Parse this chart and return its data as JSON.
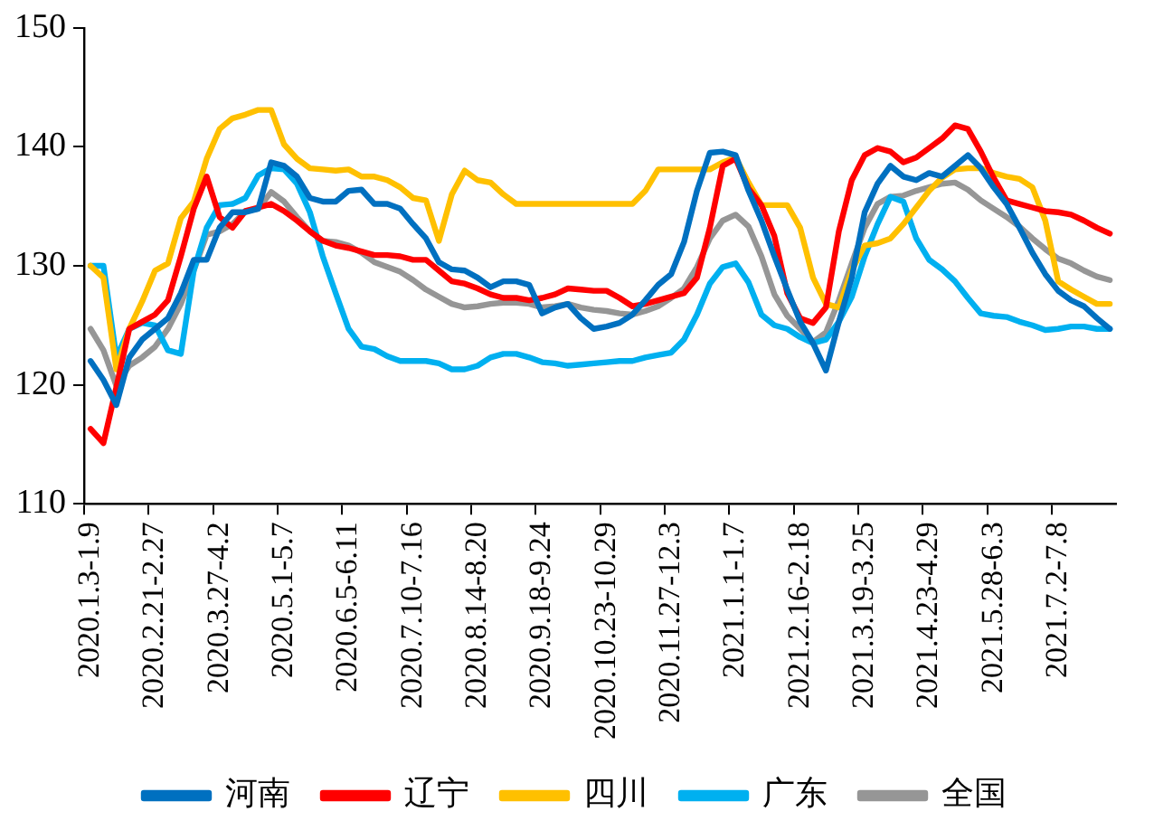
{
  "chart_data": {
    "type": "line",
    "categories": [
      "2020.1.3-1.9",
      null,
      null,
      null,
      null,
      "2020.2.21-2.27",
      null,
      null,
      null,
      null,
      "2020.3.27-4.2",
      null,
      null,
      null,
      null,
      "2020.5.1-5.7",
      null,
      null,
      null,
      null,
      "2020.6.5-6.11",
      null,
      null,
      null,
      null,
      "2020.7.10-7.16",
      null,
      null,
      null,
      null,
      "2020.8.14-8.20",
      null,
      null,
      null,
      null,
      "2020.9.18-9.24",
      null,
      null,
      null,
      null,
      "2020.10.23-10.29",
      null,
      null,
      null,
      null,
      "2020.11.27-12.3",
      null,
      null,
      null,
      null,
      "2021.1.1-1.7",
      null,
      null,
      null,
      null,
      "2021.2.16-2.18",
      null,
      null,
      null,
      null,
      "2021.3.19-3.25",
      null,
      null,
      null,
      null,
      "2021.4.23-4.29",
      null,
      null,
      null,
      null,
      "2021.5.28-6.3",
      null,
      null,
      null,
      null,
      "2021.7.2-7.8",
      null,
      null,
      null,
      null
    ],
    "series": [
      {
        "name": "河南",
        "color": "#0070c0",
        "values": [
          122,
          120.4,
          118.3,
          122.3,
          123.8,
          124.7,
          125.6,
          127.7,
          130.5,
          130.5,
          133.2,
          134.5,
          134.5,
          134.8,
          138.7,
          138.4,
          137.5,
          135.7,
          135.4,
          135.4,
          136.3,
          136.4,
          135.2,
          135.2,
          134.8,
          133.5,
          132.3,
          130.3,
          129.7,
          129.6,
          129,
          128.2,
          128.7,
          128.7,
          128.4,
          126,
          126.5,
          126.8,
          125.6,
          124.7,
          124.9,
          125.2,
          125.9,
          127.1,
          128.4,
          129.3,
          132,
          136.3,
          139.5,
          139.6,
          139.3,
          136.3,
          133.8,
          130.8,
          128,
          125.3,
          123.5,
          121.2,
          125.3,
          129,
          134.5,
          136.9,
          138.4,
          137.5,
          137.2,
          137.8,
          137.5,
          138.4,
          139.3,
          138.2,
          136.6,
          135.2,
          133.2,
          131.1,
          129.3,
          127.9,
          127.1,
          126.6,
          125.6,
          124.7
        ]
      },
      {
        "name": "辽宁",
        "color": "#ff0000",
        "values": [
          116.3,
          115.1,
          119.8,
          124.7,
          125.3,
          125.9,
          127.1,
          130.8,
          134.8,
          137.5,
          134.1,
          133.2,
          134.6,
          134.9,
          135.2,
          134.6,
          133.8,
          132.9,
          132.1,
          131.7,
          131.5,
          131.2,
          130.9,
          130.9,
          130.8,
          130.5,
          130.5,
          129.6,
          128.7,
          128.5,
          128.1,
          127.6,
          127.3,
          127.3,
          127.1,
          127.3,
          127.6,
          128.1,
          128,
          127.9,
          127.9,
          127.3,
          126.6,
          126.8,
          127.1,
          127.4,
          127.7,
          129,
          133.2,
          138.4,
          139,
          136.5,
          135.1,
          132.5,
          127.7,
          125.6,
          125.2,
          126.5,
          132.9,
          137.2,
          139.3,
          139.9,
          139.6,
          138.7,
          139.1,
          139.9,
          140.7,
          141.8,
          141.5,
          139.6,
          137.4,
          135.5,
          135.2,
          134.9,
          134.6,
          134.5,
          134.3,
          133.8,
          133.2,
          132.7
        ]
      },
      {
        "name": "四川",
        "color": "#ffc000",
        "values": [
          130,
          129,
          121.3,
          124.7,
          127,
          129.6,
          130.2,
          134,
          135.4,
          139,
          141.5,
          142.4,
          142.7,
          143.1,
          143.1,
          140.2,
          139,
          138.2,
          138.1,
          138,
          138.1,
          137.5,
          137.5,
          137.2,
          136.6,
          135.7,
          135.5,
          132.1,
          136,
          138,
          137.2,
          137,
          136,
          135.2,
          135.2,
          135.2,
          135.2,
          135.2,
          135.2,
          135.2,
          135.2,
          135.2,
          135.2,
          136.3,
          138.1,
          138.1,
          138.1,
          138.1,
          138.1,
          138.7,
          139.1,
          137,
          135.1,
          135.1,
          135.1,
          133.2,
          129,
          126.8,
          126.5,
          129.6,
          131.7,
          131.9,
          132.3,
          133.5,
          134.9,
          136.3,
          137.4,
          138.1,
          138.2,
          138.2,
          137.8,
          137.5,
          137.3,
          136.6,
          133.8,
          128.7,
          128,
          127.4,
          126.8,
          126.8
        ]
      },
      {
        "name": "广东",
        "color": "#00b0f0",
        "values": [
          130,
          130,
          122.3,
          124.7,
          125.2,
          125,
          122.9,
          122.6,
          129.6,
          133.2,
          135.1,
          135.2,
          135.7,
          137.6,
          138.2,
          138.1,
          136.9,
          134.5,
          130.8,
          127.7,
          124.7,
          123.2,
          123,
          122.4,
          122,
          122,
          122,
          121.8,
          121.3,
          121.3,
          121.6,
          122.3,
          122.6,
          122.6,
          122.3,
          121.9,
          121.8,
          121.6,
          121.7,
          121.8,
          121.9,
          122,
          122,
          122.3,
          122.5,
          122.7,
          123.8,
          125.9,
          128.5,
          129.9,
          130.2,
          128.6,
          125.9,
          125,
          124.7,
          124,
          123.5,
          123.8,
          125.3,
          127.4,
          130.8,
          133.5,
          135.8,
          135.4,
          132.3,
          130.5,
          129.7,
          128.7,
          127.3,
          126,
          125.8,
          125.7,
          125.3,
          125,
          124.6,
          124.7,
          124.9,
          124.9,
          124.7,
          124.7
        ]
      },
      {
        "name": "全国",
        "color": "#969696",
        "values": [
          124.7,
          122.9,
          119.9,
          121.6,
          122.3,
          123.2,
          124.7,
          126.8,
          129.6,
          132.6,
          132.9,
          133.5,
          134.6,
          134.8,
          136.2,
          135.4,
          134.1,
          132.9,
          132.1,
          132,
          131.7,
          131.1,
          130.3,
          129.9,
          129.5,
          128.8,
          128,
          127.4,
          126.8,
          126.5,
          126.6,
          126.8,
          126.9,
          126.9,
          126.8,
          126.5,
          126.6,
          126.8,
          126.5,
          126.3,
          126.2,
          126,
          125.9,
          126.2,
          126.6,
          127.3,
          128.1,
          129.9,
          132.3,
          133.8,
          134.3,
          133.3,
          130.8,
          127.6,
          125.8,
          124.7,
          123.6,
          124.4,
          127.1,
          130.2,
          133.2,
          135.2,
          135.8,
          135.9,
          136.3,
          136.6,
          136.9,
          137,
          136.4,
          135.5,
          134.8,
          134.1,
          133.3,
          132.3,
          131.4,
          130.6,
          130.2,
          129.6,
          129.1,
          128.8
        ]
      }
    ],
    "ylim": [
      110,
      150
    ],
    "yticks": [
      110,
      120,
      130,
      140,
      150
    ],
    "legend": "bottom",
    "marker": "none",
    "line_style": "solid"
  }
}
